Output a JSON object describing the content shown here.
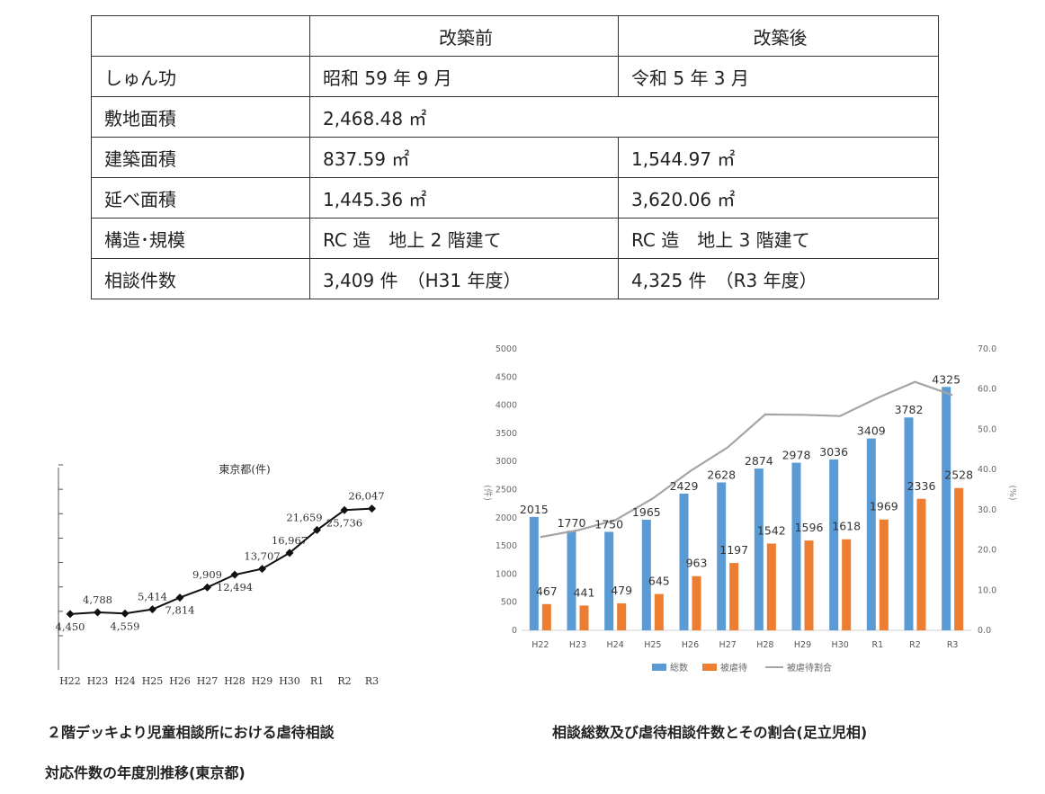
{
  "table": {
    "headers": [
      "",
      "改築前",
      "改築後"
    ],
    "rows": [
      {
        "label": "しゅん功",
        "before": "昭和 59 年 9 月",
        "after": "令和 5 年 3 月"
      },
      {
        "label": "敷地面積",
        "merged": "2,468.48 ㎡"
      },
      {
        "label": "建築面積",
        "before": "837.59 ㎡",
        "after": "1,544.97 ㎡"
      },
      {
        "label": "延べ面積",
        "before": "1,445.36 ㎡",
        "after": "3,620.06 ㎡"
      },
      {
        "label": "構造･規模",
        "before": "RC 造　地上 2 階建て",
        "after": "RC 造　地上 3 階建て"
      },
      {
        "label": "相談件数",
        "before": "3,409 件　（H31 年度）",
        "after": "4,325 件　（R3 年度）"
      }
    ]
  },
  "chart_data": [
    {
      "type": "line",
      "title": "東京都(件)",
      "categories": [
        "H22",
        "H23",
        "H24",
        "H25",
        "H26",
        "H27",
        "H28",
        "H29",
        "H30",
        "R1",
        "R2",
        "R3"
      ],
      "series": [
        {
          "values": [
            4450,
            4788,
            4559,
            5414,
            7814,
            9909,
            12494,
            13707,
            16967,
            21659,
            25736,
            26047
          ]
        }
      ],
      "data_labels": [
        "4,450",
        "4,788",
        "4,559",
        "5,414",
        "7,814",
        "9,909",
        "12,494",
        "13,707",
        "16,967",
        "21,659",
        "25,736",
        "26,047"
      ],
      "ylim": [
        0,
        35000
      ],
      "marker": "diamond",
      "colors": {
        "line": "#111111"
      }
    },
    {
      "type": "bar",
      "categories": [
        "H22",
        "H23",
        "H24",
        "H25",
        "H26",
        "H27",
        "H28",
        "H29",
        "H30",
        "R1",
        "R2",
        "R3"
      ],
      "series": [
        {
          "name": "総数",
          "type": "bar",
          "axis": "left",
          "values": [
            2015,
            1770,
            1750,
            1965,
            2429,
            2628,
            2874,
            2978,
            3036,
            3409,
            3782,
            4325
          ]
        },
        {
          "name": "被虐待",
          "type": "bar",
          "axis": "left",
          "values": [
            467,
            441,
            479,
            645,
            963,
            1197,
            1542,
            1596,
            1618,
            1969,
            2336,
            2528
          ]
        },
        {
          "name": "被虐待割合",
          "type": "line",
          "axis": "right",
          "values": [
            23.2,
            24.9,
            27.4,
            32.8,
            39.6,
            45.5,
            53.7,
            53.6,
            53.3,
            57.8,
            61.8,
            58.5
          ]
        }
      ],
      "ylabel_left": "(件)",
      "ylabel_right": "(%)",
      "ylim_left": [
        0,
        5000
      ],
      "yticks_left": [
        "0",
        "500",
        "1000",
        "1500",
        "2000",
        "2500",
        "3000",
        "3500",
        "4000",
        "4500",
        "5000"
      ],
      "ylim_right": [
        0,
        70
      ],
      "yticks_right": [
        "0.0",
        "10.0",
        "20.0",
        "30.0",
        "40.0",
        "50.0",
        "60.0",
        "70.0"
      ],
      "legend_position": "bottom",
      "colors": {
        "total": "#5B9BD5",
        "abuse": "#ED7D31",
        "ratio": "#A5A5A5"
      }
    }
  ],
  "captions": {
    "left_line1": "２階デッキより児童相談所における虐待相談",
    "left_line2": "対応件数の年度別推移(東京都)",
    "right": "相談総数及び虐待相談件数とその割合(足立児相)"
  }
}
